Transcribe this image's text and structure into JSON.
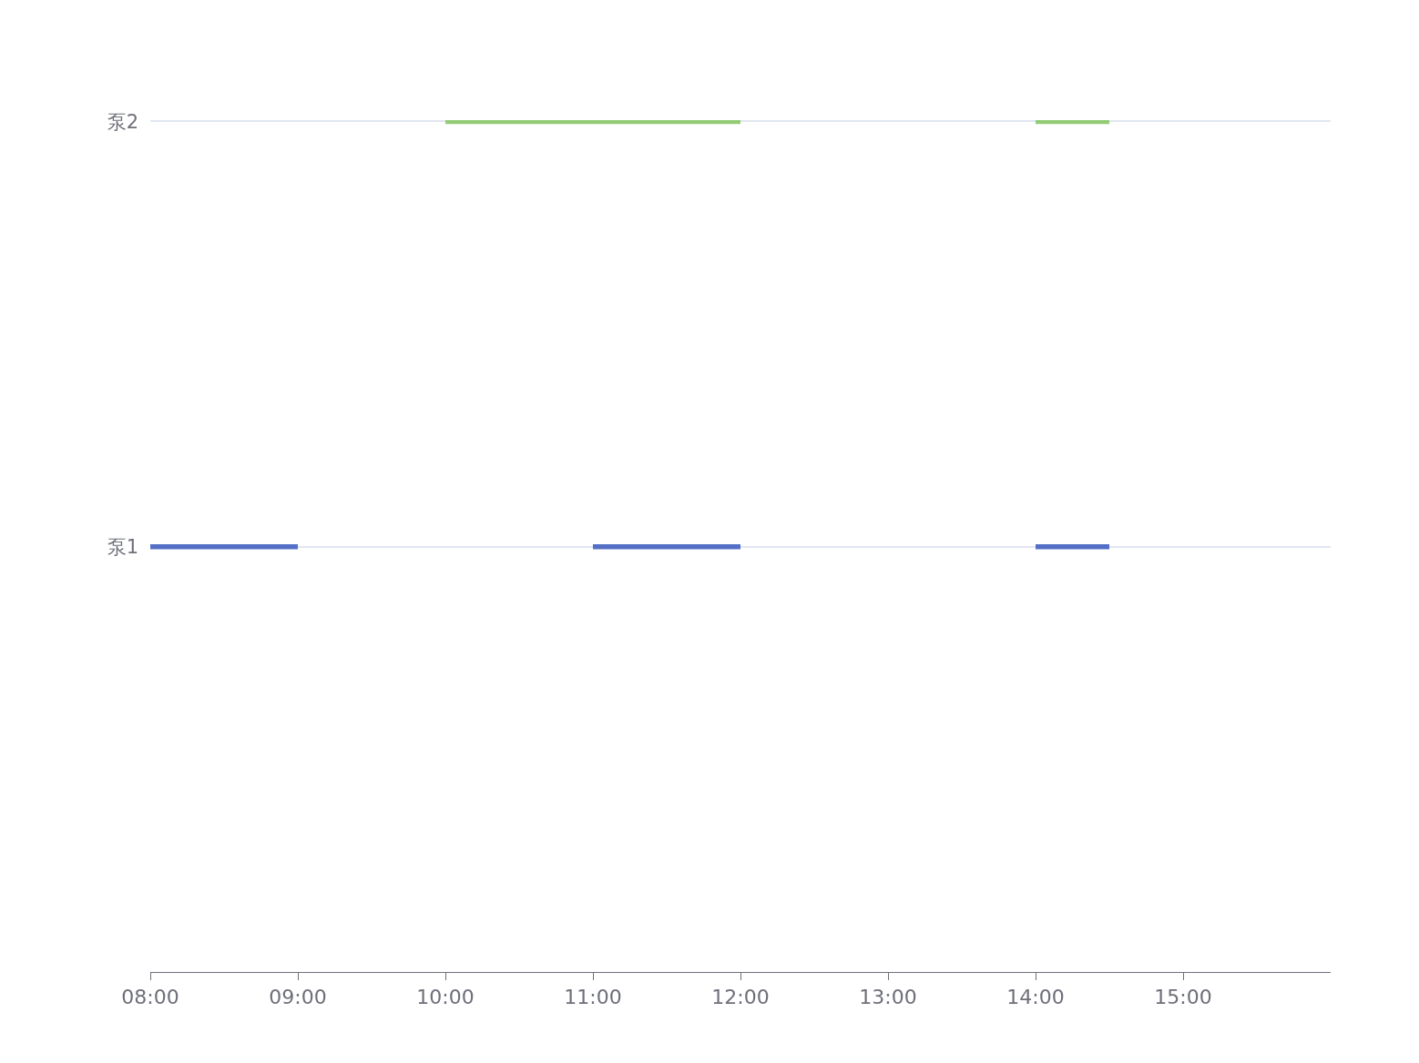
{
  "chart_data": {
    "type": "bar",
    "orientation": "horizontal",
    "categories": [
      "泵2",
      "泵1",
      null
    ],
    "series": [
      {
        "values": [
          2,
          1,
          null
        ],
        "base": [
          10,
          8,
          null
        ],
        "colors": [
          "#91cc75",
          "#5470c6",
          null
        ]
      },
      {
        "values": [
          0.5,
          1,
          null
        ],
        "base": [
          14,
          11,
          null
        ],
        "colors": [
          "#91cc75",
          "#5470c6",
          null
        ]
      },
      {
        "values": [
          null,
          0.5,
          null
        ],
        "base": [
          null,
          14,
          null
        ],
        "colors": [
          null,
          "#5470c6",
          null
        ]
      }
    ],
    "xlim": [
      8,
      16
    ],
    "xticks": [
      {
        "value": 8,
        "label": "08:00"
      },
      {
        "value": 9,
        "label": "09:00"
      },
      {
        "value": 10,
        "label": "10:00"
      },
      {
        "value": 11,
        "label": "11:00"
      },
      {
        "value": 12,
        "label": "12:00"
      },
      {
        "value": 13,
        "label": "13:00"
      },
      {
        "value": 14,
        "label": "14:00"
      },
      {
        "value": 15,
        "label": "15:00"
      }
    ],
    "grid": "y"
  }
}
